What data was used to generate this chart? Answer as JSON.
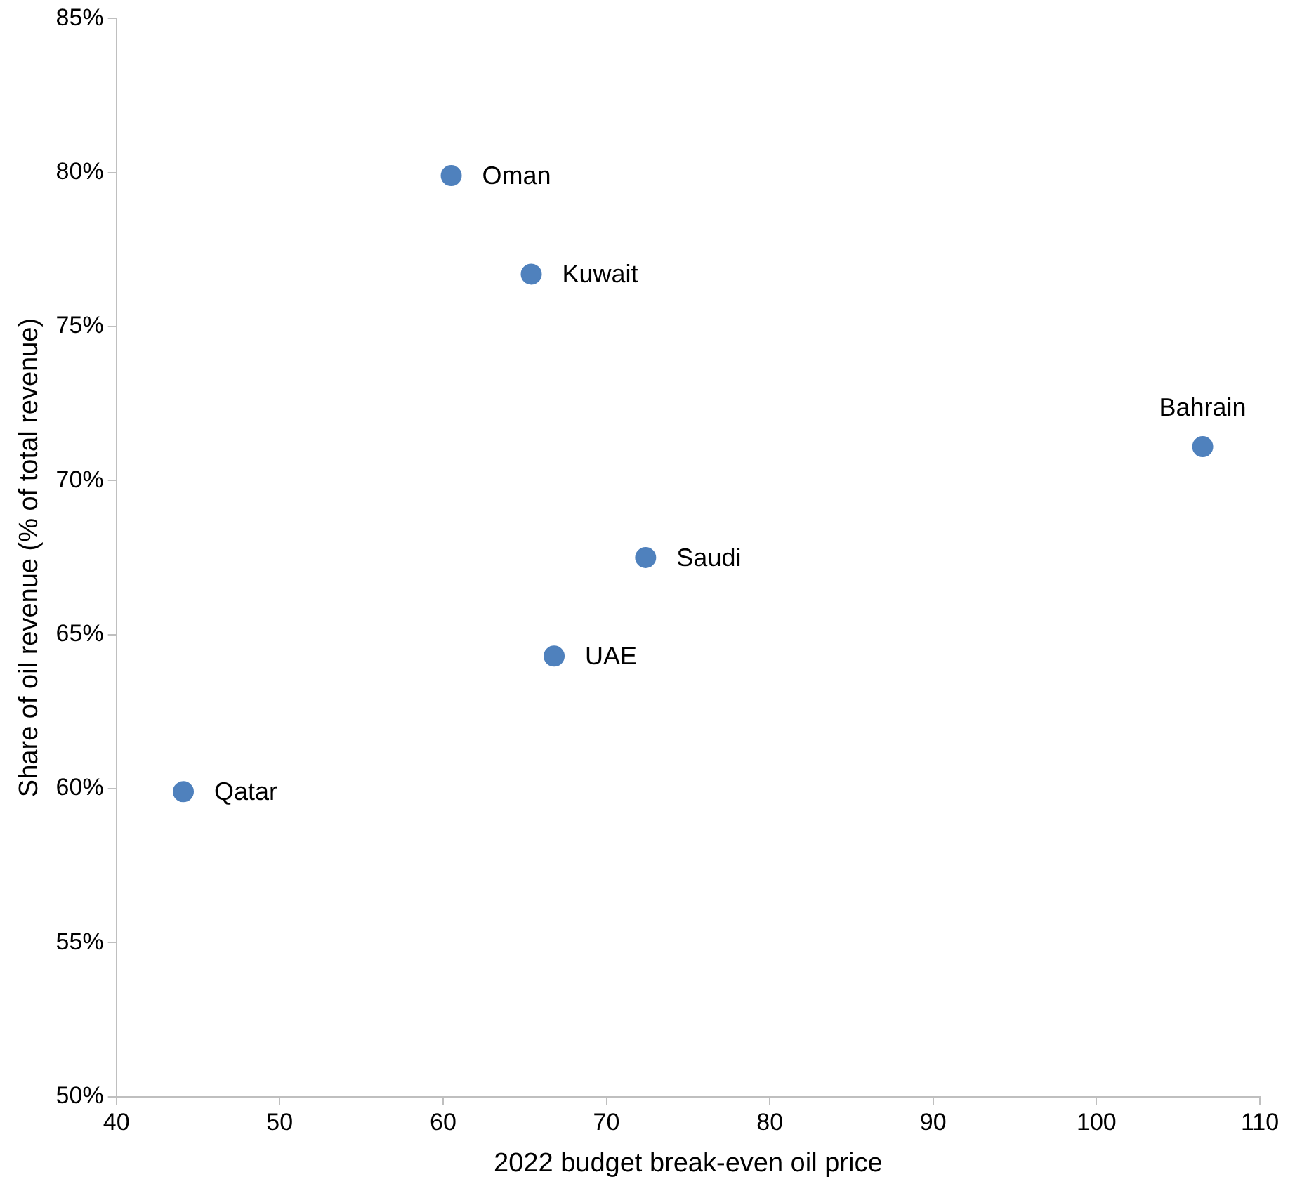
{
  "chart_data": {
    "type": "scatter",
    "xlabel": "2022 budget break-even oil price",
    "ylabel": "Share of oil revenue (% of total revenue)",
    "x": [
      60.5,
      65.4,
      106.5,
      72.4,
      66.8,
      44.1
    ],
    "values": [
      79.9,
      76.7,
      71.1,
      67.5,
      64.3,
      59.9
    ],
    "color": "#4f81bd",
    "marker": "circle",
    "grid": false,
    "legend": false,
    "xlim": [
      40,
      110
    ],
    "xticks": [
      40,
      50,
      60,
      70,
      80,
      90,
      100,
      110
    ],
    "ylim": [
      50,
      85
    ],
    "yticks": [
      {
        "value": 50,
        "label": "50%"
      },
      {
        "value": 55,
        "label": "55%"
      },
      {
        "value": 60,
        "label": "60%"
      },
      {
        "value": 65,
        "label": "65%"
      },
      {
        "value": 70,
        "label": "70%"
      },
      {
        "value": 75,
        "label": "75%"
      },
      {
        "value": 80,
        "label": "80%"
      },
      {
        "value": 85,
        "label": "85%"
      }
    ],
    "annotations": [
      {
        "text": "Oman",
        "x": 60.5,
        "y": 79.9
      },
      {
        "text": "Kuwait",
        "x": 65.4,
        "y": 76.7
      },
      {
        "text": "Bahrain",
        "x": 106.5,
        "y": 71.1
      },
      {
        "text": "Saudi",
        "x": 72.4,
        "y": 67.5
      },
      {
        "text": "UAE",
        "x": 66.8,
        "y": 64.3
      },
      {
        "text": "Qatar",
        "x": 44.1,
        "y": 59.9
      }
    ]
  }
}
